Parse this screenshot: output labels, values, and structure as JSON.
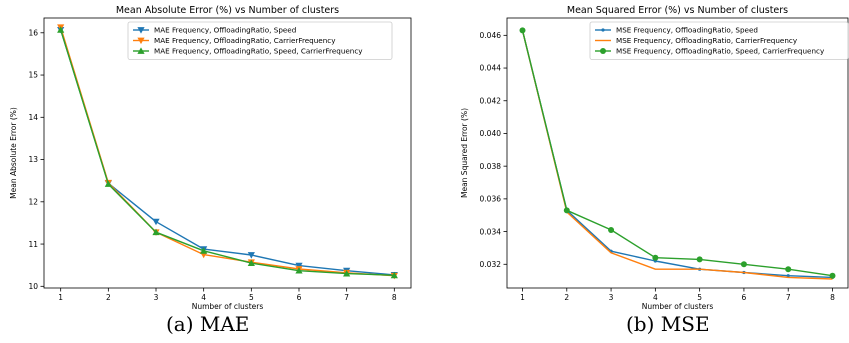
{
  "captions": [
    "(a) MAE",
    "(b) MSE"
  ],
  "colors": {
    "s1": "#1f77b4",
    "s2": "#ff7f0e",
    "s3": "#2ca02c"
  },
  "chart_data": [
    {
      "type": "line",
      "title": "Mean Absolute Error (%) vs Number of clusters",
      "xlabel": "Number of clusters",
      "ylabel": "Mean Absolute Error (%)",
      "x": [
        1,
        2,
        3,
        4,
        5,
        6,
        7,
        8
      ],
      "xticks": [
        "1",
        "2",
        "3",
        "4",
        "5",
        "6",
        "7",
        "8"
      ],
      "yticks": [
        "10",
        "11",
        "12",
        "13",
        "14",
        "15",
        "16"
      ],
      "ylim": [
        9.96,
        16.35
      ],
      "grid": false,
      "legend_position": "top-right",
      "series": [
        {
          "name": "MAE Frequency, OffloadingRatio, Speed",
          "marker": "triangle-down",
          "color": "#1f77b4",
          "values": [
            16.07,
            12.44,
            11.53,
            10.88,
            10.74,
            10.49,
            10.37,
            10.27
          ]
        },
        {
          "name": "MAE Frequency, OffloadingRatio, CarrierFrequency",
          "marker": "triangle-down",
          "color": "#ff7f0e",
          "values": [
            16.13,
            12.45,
            11.28,
            10.75,
            10.57,
            10.41,
            10.32,
            10.25
          ]
        },
        {
          "name": "MAE Frequency, OffloadingRatio, Speed, CarrierFrequency",
          "marker": "triangle-up",
          "color": "#2ca02c",
          "values": [
            16.07,
            12.42,
            11.28,
            10.84,
            10.55,
            10.37,
            10.3,
            10.26
          ]
        }
      ]
    },
    {
      "type": "line",
      "title": "Mean Squared Error (%) vs Number of clusters",
      "xlabel": "Number of clusters",
      "ylabel": "Mean Squared Error (%)",
      "x": [
        1,
        2,
        3,
        4,
        5,
        6,
        7,
        8
      ],
      "xticks": [
        "1",
        "2",
        "3",
        "4",
        "5",
        "6",
        "7",
        "8"
      ],
      "yticks": [
        "0.032",
        "0.034",
        "0.036",
        "0.038",
        "0.040",
        "0.042",
        "0.044",
        "0.046"
      ],
      "ylim": [
        0.03055,
        0.04706
      ],
      "grid": false,
      "legend_position": "top-right",
      "series": [
        {
          "name": "MSE Frequency, OffloadingRatio, Speed",
          "marker": "point",
          "color": "#1f77b4",
          "values": [
            0.0463,
            0.0353,
            0.0328,
            0.0322,
            0.0317,
            0.0315,
            0.0313,
            0.0312
          ]
        },
        {
          "name": "MSE Frequency, OffloadingRatio, CarrierFrequency",
          "marker": "none",
          "color": "#ff7f0e",
          "values": [
            0.0463,
            0.0352,
            0.0327,
            0.0317,
            0.0317,
            0.0315,
            0.0312,
            0.0311
          ]
        },
        {
          "name": "MSE Frequency, OffloadingRatio, Speed, CarrierFrequency",
          "marker": "circle",
          "color": "#2ca02c",
          "values": [
            0.0463,
            0.0353,
            0.0341,
            0.0324,
            0.0323,
            0.032,
            0.0317,
            0.0313
          ]
        }
      ]
    }
  ]
}
